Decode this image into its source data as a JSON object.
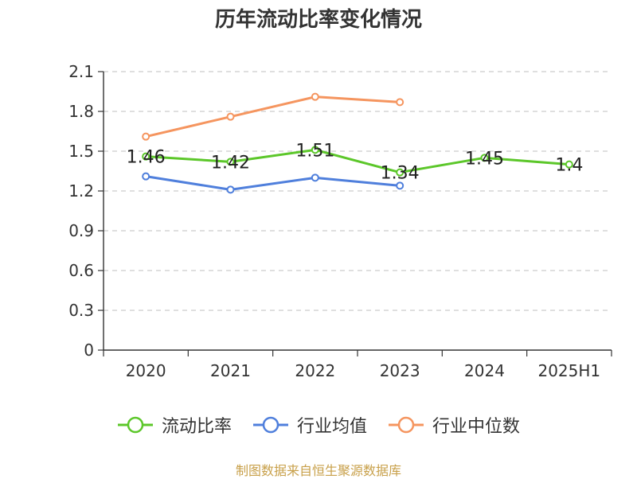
{
  "chart_data": {
    "type": "line",
    "title": "历年流动比率变化情况",
    "categories": [
      "2020",
      "2021",
      "2022",
      "2023",
      "2024",
      "2025H1"
    ],
    "y_ticks": [
      "0",
      "0.3",
      "0.6",
      "0.9",
      "1.2",
      "1.5",
      "1.8",
      "2.1"
    ],
    "ylim": [
      0,
      2.1
    ],
    "grid": true,
    "legend_position": "bottom",
    "series": [
      {
        "name": "流动比率",
        "color": "#5cc72a",
        "values": [
          1.46,
          1.42,
          1.51,
          1.34,
          1.45,
          1.4
        ],
        "labels": [
          "1.46",
          "1.42",
          "1.51",
          "1.34",
          "1.45",
          "1.4"
        ]
      },
      {
        "name": "行业均值",
        "color": "#4f7fdc",
        "values": [
          1.31,
          1.21,
          1.3,
          1.24,
          null,
          null
        ]
      },
      {
        "name": "行业中位数",
        "color": "#f5955f",
        "values": [
          1.61,
          1.76,
          1.91,
          1.87,
          null,
          null
        ]
      }
    ]
  },
  "source_note": "制图数据来自恒生聚源数据库"
}
